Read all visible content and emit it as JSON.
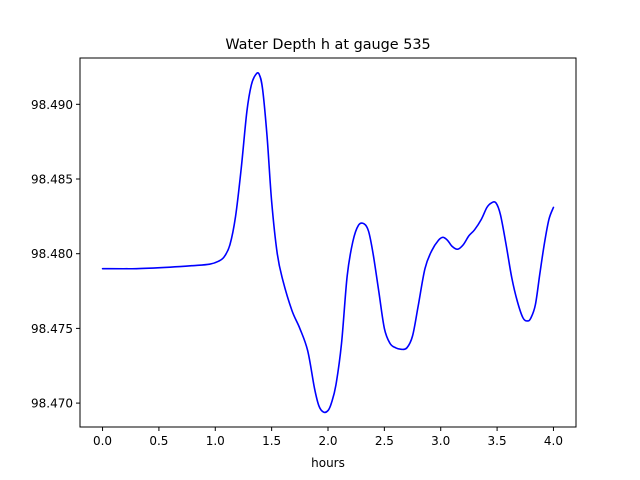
{
  "chart_data": {
    "type": "line",
    "title": "Water Depth h at gauge 535",
    "xlabel": "hours",
    "ylabel": "",
    "xlim": [
      -0.2,
      4.2
    ],
    "ylim": [
      98.4684,
      98.4931
    ],
    "xticks": [
      0.0,
      0.5,
      1.0,
      1.5,
      2.0,
      2.5,
      3.0,
      3.5,
      4.0
    ],
    "xtick_labels": [
      "0.0",
      "0.5",
      "1.0",
      "1.5",
      "2.0",
      "2.5",
      "3.0",
      "3.5",
      "4.0"
    ],
    "yticks": [
      98.47,
      98.475,
      98.48,
      98.485,
      98.49
    ],
    "ytick_labels": [
      "98.470",
      "98.475",
      "98.480",
      "98.485",
      "98.490"
    ],
    "grid": false,
    "series": [
      {
        "color": "#0000ff",
        "x": [
          0.0,
          0.3,
          0.6,
          0.8,
          0.95,
          1.03,
          1.08,
          1.13,
          1.18,
          1.23,
          1.28,
          1.32,
          1.36,
          1.39,
          1.42,
          1.46,
          1.5,
          1.55,
          1.6,
          1.68,
          1.75,
          1.82,
          1.88,
          1.92,
          1.96,
          2.0,
          2.03,
          2.07,
          2.12,
          2.17,
          2.22,
          2.27,
          2.32,
          2.36,
          2.4,
          2.45,
          2.5,
          2.55,
          2.6,
          2.65,
          2.7,
          2.75,
          2.8,
          2.86,
          2.92,
          2.98,
          3.02,
          3.06,
          3.1,
          3.15,
          3.2,
          3.25,
          3.3,
          3.36,
          3.41,
          3.45,
          3.49,
          3.53,
          3.58,
          3.63,
          3.68,
          3.73,
          3.77,
          3.8,
          3.84,
          3.88,
          3.92,
          3.96,
          4.0
        ],
        "y": [
          98.479,
          98.479,
          98.4791,
          98.4792,
          98.4793,
          98.4795,
          98.4798,
          98.4806,
          98.4825,
          98.4857,
          98.4895,
          98.4913,
          98.492,
          98.492,
          98.491,
          98.4878,
          98.4835,
          98.48,
          98.4782,
          98.4762,
          98.475,
          98.4735,
          98.471,
          98.4698,
          98.4694,
          98.4695,
          98.47,
          98.4712,
          98.474,
          98.4785,
          98.4808,
          98.4819,
          98.482,
          98.4815,
          98.48,
          98.4775,
          98.475,
          98.474,
          98.4737,
          98.4736,
          98.4737,
          98.4745,
          98.4765,
          98.479,
          98.4802,
          98.4809,
          98.4811,
          98.4809,
          98.4805,
          98.4803,
          98.4806,
          98.4812,
          98.4816,
          98.4823,
          98.4831,
          98.4834,
          98.4834,
          98.4826,
          98.4806,
          98.4784,
          98.4768,
          98.4757,
          98.4755,
          98.4757,
          98.4766,
          98.4787,
          98.4807,
          98.4823,
          98.4831
        ]
      }
    ]
  }
}
